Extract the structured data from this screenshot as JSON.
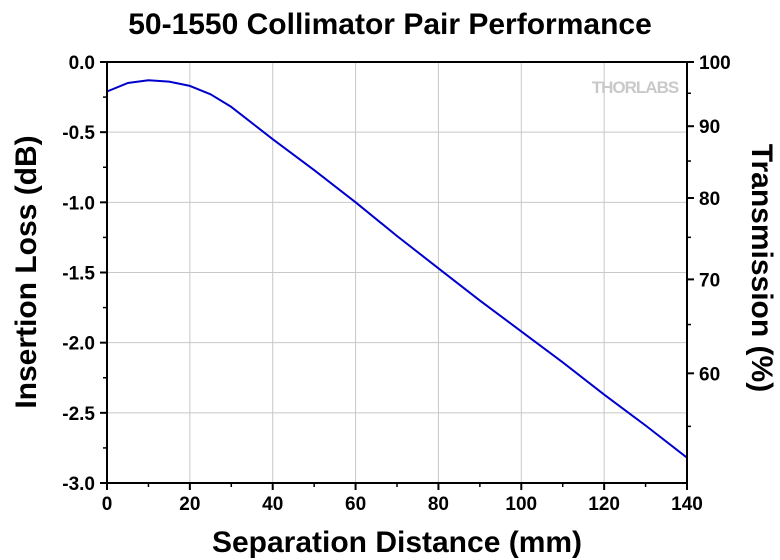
{
  "chart_data": {
    "type": "line",
    "title": "50-1550 Collimator Pair Performance",
    "xlabel": "Separation Distance (mm)",
    "ylabel": "Insertion Loss (dB)",
    "y2label": "Transmission (%)",
    "watermark": "THORLABS",
    "xlim": [
      0,
      140
    ],
    "ylim": [
      -3.0,
      0.0
    ],
    "x_ticks": [
      "0",
      "20",
      "40",
      "60",
      "80",
      "100",
      "120",
      "140"
    ],
    "y_ticks": [
      "0.0",
      "-0.5",
      "-1.0",
      "-1.5",
      "-2.0",
      "-2.5",
      "-3.0"
    ],
    "y2_ticks": [
      "100",
      "90",
      "80",
      "70",
      "60"
    ],
    "grid": true,
    "series": [
      {
        "color": "#0000cc",
        "x": [
          0,
          5,
          10,
          15,
          20,
          25,
          30,
          40,
          50,
          60,
          70,
          80,
          90,
          100,
          110,
          120,
          130,
          140
        ],
        "y": [
          -0.21,
          -0.15,
          -0.13,
          -0.14,
          -0.17,
          -0.23,
          -0.32,
          -0.55,
          -0.77,
          -1.0,
          -1.24,
          -1.47,
          -1.7,
          -1.92,
          -2.14,
          -2.37,
          -2.59,
          -2.82
        ]
      }
    ]
  }
}
